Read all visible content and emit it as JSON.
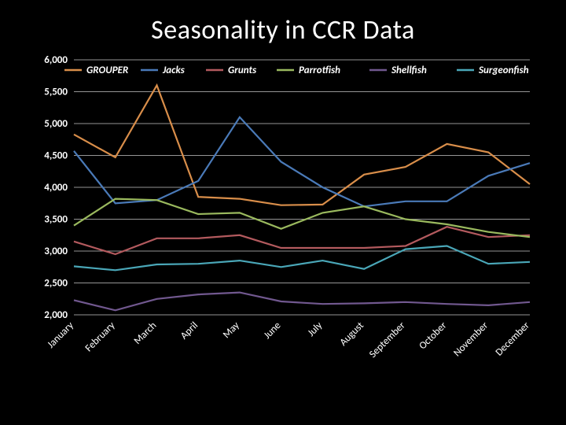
{
  "title": "Seasonality in CCR Data",
  "background_color": "#000000",
  "text_color": "#ffffff",
  "grid_color": "#959595",
  "title_fontsize": 34,
  "tick_fontsize": 13,
  "chart": {
    "type": "line",
    "x_categories": [
      "January",
      "February",
      "March",
      "April",
      "May",
      "June",
      "July",
      "August",
      "September",
      "October",
      "November",
      "December"
    ],
    "x_label_rotation_deg": -45,
    "y": {
      "min": 2000,
      "max": 6000,
      "step": 500,
      "format_thousands": true
    },
    "line_width": 2.2,
    "series": [
      {
        "name": "GROUPER",
        "color": "#d98e4a",
        "values": [
          4830,
          4470,
          5600,
          3850,
          3820,
          3720,
          3730,
          4200,
          4320,
          4680,
          4550,
          4050
        ]
      },
      {
        "name": "Jacks",
        "color": "#4a7ab8",
        "values": [
          4570,
          3750,
          3800,
          4100,
          5100,
          4400,
          4000,
          3700,
          3780,
          3780,
          4180,
          4380
        ]
      },
      {
        "name": "Grunts",
        "color": "#b35a5e",
        "values": [
          3150,
          2950,
          3200,
          3200,
          3250,
          3050,
          3050,
          3050,
          3080,
          3380,
          3220,
          3250
        ]
      },
      {
        "name": "Parrotfish",
        "color": "#9ab95e",
        "values": [
          3400,
          3820,
          3800,
          3580,
          3600,
          3350,
          3600,
          3700,
          3500,
          3420,
          3300,
          3220
        ]
      },
      {
        "name": "Shellfish",
        "color": "#71588f",
        "values": [
          2230,
          2070,
          2250,
          2320,
          2350,
          2210,
          2170,
          2180,
          2200,
          2170,
          2150,
          2200
        ]
      },
      {
        "name": "Surgeonfish",
        "color": "#4aa7b8",
        "values": [
          2760,
          2700,
          2790,
          2800,
          2850,
          2750,
          2850,
          2720,
          3030,
          3080,
          2800,
          2830
        ]
      }
    ],
    "legend": {
      "position": "top-inside",
      "italic": true,
      "bold": true
    }
  }
}
